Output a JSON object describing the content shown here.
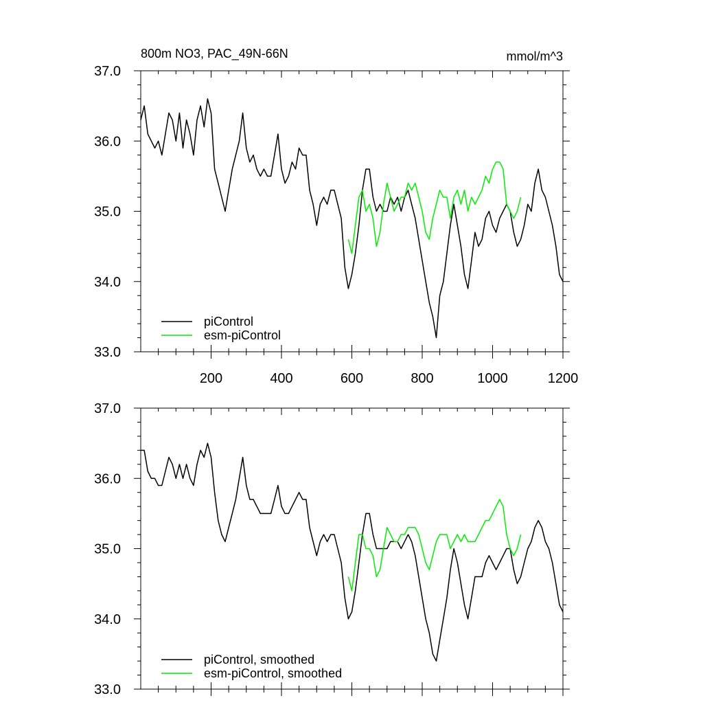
{
  "figure": {
    "title_left": "800m NO3, PAC_49N-66N",
    "title_right": "mmol/m^3"
  },
  "colors": {
    "piControl": "#000000",
    "esm_piControl": "#00ee00"
  },
  "chart_data": [
    {
      "type": "line",
      "title": "800m NO3, PAC_49N-66N",
      "units": "mmol/m^3",
      "xlim": [
        0,
        1200
      ],
      "ylim": [
        33.0,
        37.0
      ],
      "xticks": [
        200,
        400,
        600,
        800,
        1000,
        1200
      ],
      "xtick_labels": [
        "200",
        "400",
        "600",
        "800",
        "1000",
        "1200"
      ],
      "yticks": [
        33.0,
        34.0,
        35.0,
        36.0,
        37.0
      ],
      "ytick_labels": [
        "33.0",
        "34.0",
        "35.0",
        "36.0",
        "37.0"
      ],
      "legend_position": "bottom-left",
      "series": [
        {
          "name": "piControl",
          "color": "#000000",
          "x": [
            0,
            10,
            20,
            30,
            40,
            50,
            60,
            70,
            80,
            90,
            100,
            110,
            120,
            130,
            140,
            150,
            160,
            170,
            180,
            190,
            200,
            210,
            220,
            230,
            240,
            250,
            260,
            270,
            280,
            290,
            300,
            310,
            320,
            330,
            340,
            350,
            360,
            370,
            380,
            390,
            400,
            410,
            420,
            430,
            440,
            450,
            460,
            470,
            480,
            490,
            500,
            510,
            520,
            530,
            540,
            550,
            560,
            570,
            580,
            590,
            600,
            610,
            620,
            630,
            640,
            650,
            660,
            670,
            680,
            690,
            700,
            710,
            720,
            730,
            740,
            750,
            760,
            770,
            780,
            790,
            800,
            810,
            820,
            830,
            840,
            850,
            860,
            870,
            880,
            890,
            900,
            910,
            920,
            930,
            940,
            950,
            960,
            970,
            980,
            990,
            1000,
            1010,
            1020,
            1030,
            1040,
            1050,
            1060,
            1070,
            1080,
            1090,
            1100,
            1110,
            1120,
            1130,
            1140,
            1150,
            1160,
            1170,
            1180,
            1190,
            1200
          ],
          "y": [
            36.3,
            36.5,
            36.1,
            36.0,
            35.9,
            36.0,
            35.8,
            36.1,
            36.4,
            36.3,
            36.0,
            36.4,
            35.9,
            36.3,
            36.1,
            35.8,
            36.3,
            36.5,
            36.2,
            36.6,
            36.4,
            35.6,
            35.4,
            35.2,
            35.0,
            35.3,
            35.6,
            35.8,
            36.0,
            36.4,
            35.9,
            35.7,
            35.8,
            35.6,
            35.5,
            35.6,
            35.5,
            35.5,
            35.8,
            36.1,
            35.6,
            35.4,
            35.5,
            35.7,
            35.6,
            35.9,
            35.8,
            35.8,
            35.3,
            35.1,
            34.8,
            35.1,
            35.2,
            35.1,
            35.3,
            35.3,
            35.1,
            34.9,
            34.2,
            33.9,
            34.1,
            34.4,
            34.8,
            35.3,
            35.6,
            35.6,
            35.2,
            35.0,
            35.1,
            35.0,
            35.0,
            35.2,
            35.1,
            35.2,
            35.0,
            35.2,
            35.3,
            35.1,
            34.9,
            34.6,
            34.3,
            34.0,
            33.7,
            33.5,
            33.2,
            33.8,
            34.0,
            34.4,
            34.8,
            35.1,
            34.8,
            34.5,
            34.1,
            33.9,
            34.3,
            34.7,
            34.5,
            34.6,
            34.9,
            35.0,
            34.8,
            34.7,
            34.9,
            35.0,
            35.1,
            35.0,
            34.7,
            34.5,
            34.6,
            34.8,
            35.1,
            35.0,
            35.4,
            35.6,
            35.3,
            35.2,
            35.0,
            34.8,
            34.5,
            34.1,
            34.0
          ]
        },
        {
          "name": "esm-piControl",
          "color": "#00ee00",
          "x": [
            590,
            600,
            610,
            620,
            630,
            640,
            650,
            660,
            670,
            680,
            690,
            700,
            710,
            720,
            730,
            740,
            750,
            760,
            770,
            780,
            790,
            800,
            810,
            820,
            830,
            840,
            850,
            860,
            870,
            880,
            890,
            900,
            910,
            920,
            930,
            940,
            950,
            960,
            970,
            980,
            990,
            1000,
            1010,
            1020,
            1030,
            1040,
            1050,
            1060,
            1070,
            1080
          ],
          "y": [
            34.6,
            34.4,
            34.8,
            35.2,
            35.3,
            35.0,
            35.1,
            34.9,
            34.5,
            34.7,
            35.1,
            35.4,
            35.2,
            35.0,
            35.1,
            35.2,
            35.2,
            35.4,
            35.3,
            35.4,
            35.2,
            35.0,
            34.7,
            34.6,
            34.9,
            35.1,
            35.3,
            35.2,
            35.2,
            34.9,
            35.2,
            35.3,
            35.1,
            35.3,
            35.0,
            35.2,
            35.1,
            35.2,
            35.3,
            35.5,
            35.4,
            35.6,
            35.7,
            35.7,
            35.6,
            35.1,
            35.0,
            34.9,
            35.0,
            35.2
          ]
        }
      ]
    },
    {
      "type": "line",
      "xlim": [
        0,
        1200
      ],
      "ylim": [
        33.0,
        37.0
      ],
      "yticks": [
        33.0,
        34.0,
        35.0,
        36.0,
        37.0
      ],
      "ytick_labels": [
        "33.0",
        "34.0",
        "35.0",
        "36.0",
        "37.0"
      ],
      "legend_position": "bottom-left",
      "series": [
        {
          "name": "piControl, smoothed",
          "color": "#000000",
          "x": [
            0,
            10,
            20,
            30,
            40,
            50,
            60,
            70,
            80,
            90,
            100,
            110,
            120,
            130,
            140,
            150,
            160,
            170,
            180,
            190,
            200,
            210,
            220,
            230,
            240,
            250,
            260,
            270,
            280,
            290,
            300,
            310,
            320,
            330,
            340,
            350,
            360,
            370,
            380,
            390,
            400,
            410,
            420,
            430,
            440,
            450,
            460,
            470,
            480,
            490,
            500,
            510,
            520,
            530,
            540,
            550,
            560,
            570,
            580,
            590,
            600,
            610,
            620,
            630,
            640,
            650,
            660,
            670,
            680,
            690,
            700,
            710,
            720,
            730,
            740,
            750,
            760,
            770,
            780,
            790,
            800,
            810,
            820,
            830,
            840,
            850,
            860,
            870,
            880,
            890,
            900,
            910,
            920,
            930,
            940,
            950,
            960,
            970,
            980,
            990,
            1000,
            1010,
            1020,
            1030,
            1040,
            1050,
            1060,
            1070,
            1080,
            1090,
            1100,
            1110,
            1120,
            1130,
            1140,
            1150,
            1160,
            1170,
            1180,
            1190,
            1200
          ],
          "y": [
            36.4,
            36.4,
            36.1,
            36.0,
            36.0,
            35.9,
            35.9,
            36.1,
            36.3,
            36.2,
            36.0,
            36.2,
            36.0,
            36.2,
            36.0,
            35.9,
            36.2,
            36.4,
            36.3,
            36.5,
            36.3,
            35.8,
            35.4,
            35.2,
            35.1,
            35.3,
            35.5,
            35.7,
            36.0,
            36.3,
            35.9,
            35.7,
            35.7,
            35.6,
            35.5,
            35.5,
            35.5,
            35.5,
            35.7,
            35.9,
            35.6,
            35.5,
            35.5,
            35.6,
            35.7,
            35.8,
            35.7,
            35.7,
            35.3,
            35.1,
            34.9,
            35.1,
            35.2,
            35.1,
            35.2,
            35.2,
            35.0,
            34.8,
            34.3,
            34.0,
            34.1,
            34.4,
            34.8,
            35.2,
            35.5,
            35.5,
            35.2,
            35.0,
            35.0,
            35.0,
            35.0,
            35.1,
            35.1,
            35.1,
            35.0,
            35.1,
            35.2,
            35.1,
            34.9,
            34.6,
            34.3,
            34.0,
            33.8,
            33.5,
            33.4,
            33.7,
            34.0,
            34.3,
            34.7,
            35.0,
            34.8,
            34.5,
            34.2,
            34.0,
            34.3,
            34.6,
            34.6,
            34.6,
            34.8,
            34.9,
            34.8,
            34.7,
            34.8,
            34.9,
            35.0,
            35.0,
            34.7,
            34.5,
            34.6,
            34.8,
            35.0,
            35.1,
            35.3,
            35.4,
            35.3,
            35.1,
            35.0,
            34.8,
            34.5,
            34.2,
            34.1
          ]
        },
        {
          "name": "esm-piControl, smoothed",
          "color": "#00ee00",
          "x": [
            590,
            600,
            610,
            620,
            630,
            640,
            650,
            660,
            670,
            680,
            690,
            700,
            710,
            720,
            730,
            740,
            750,
            760,
            770,
            780,
            790,
            800,
            810,
            820,
            830,
            840,
            850,
            860,
            870,
            880,
            890,
            900,
            910,
            920,
            930,
            940,
            950,
            960,
            970,
            980,
            990,
            1000,
            1010,
            1020,
            1030,
            1040,
            1050,
            1060,
            1070,
            1080
          ],
          "y": [
            34.6,
            34.4,
            34.8,
            35.2,
            35.2,
            35.0,
            35.0,
            34.9,
            34.6,
            34.7,
            35.0,
            35.3,
            35.2,
            35.1,
            35.1,
            35.2,
            35.2,
            35.3,
            35.3,
            35.3,
            35.2,
            35.0,
            34.8,
            34.7,
            34.9,
            35.1,
            35.2,
            35.2,
            35.2,
            35.0,
            35.1,
            35.2,
            35.1,
            35.2,
            35.1,
            35.1,
            35.1,
            35.2,
            35.3,
            35.4,
            35.4,
            35.5,
            35.6,
            35.7,
            35.6,
            35.2,
            35.0,
            34.9,
            35.0,
            35.2
          ]
        }
      ]
    }
  ]
}
